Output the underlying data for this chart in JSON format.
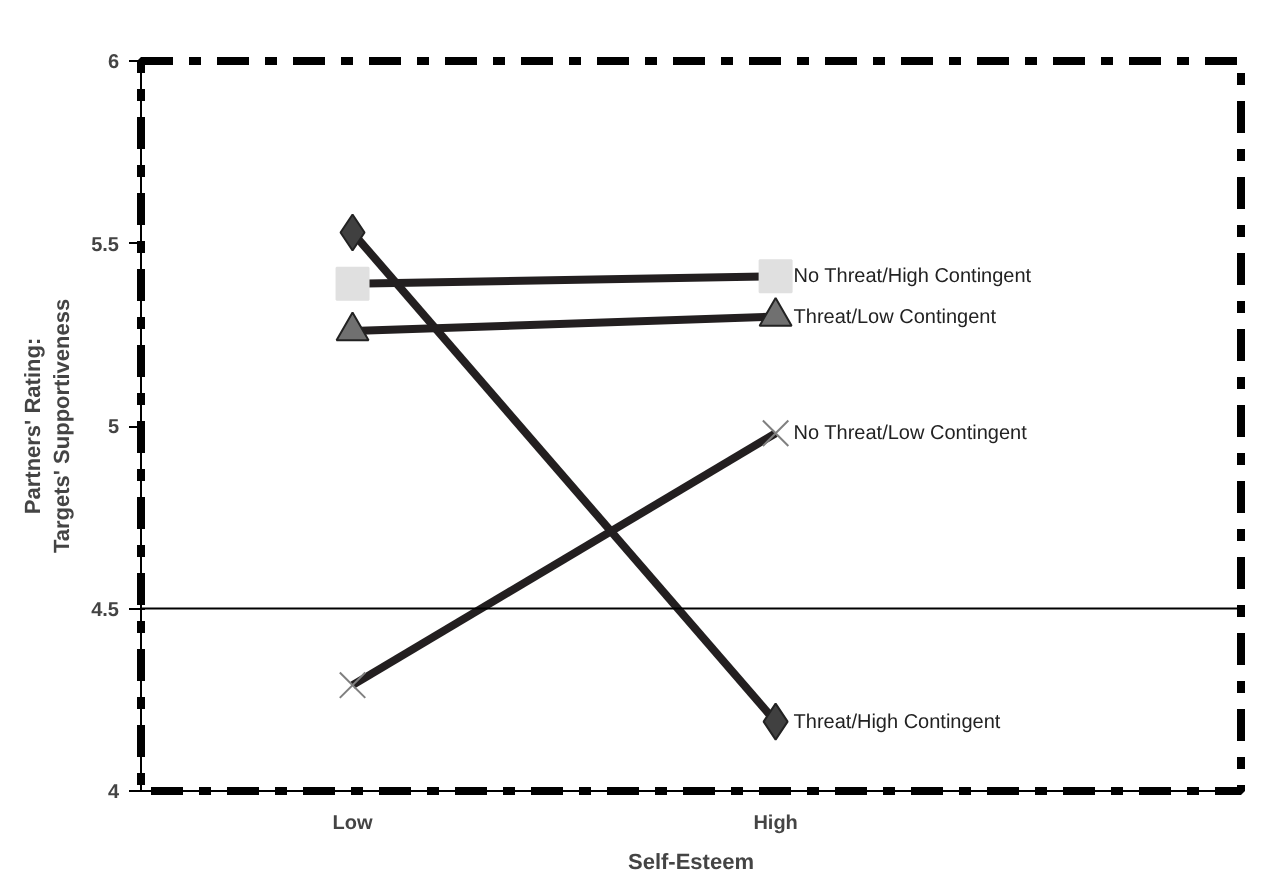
{
  "chart_data": {
    "type": "line",
    "xlabel": "Self-Esteem",
    "ylabel": "Partners' Rating:\nTargets' Supportiveness",
    "categories": [
      "Low",
      "High"
    ],
    "ylim": [
      4,
      6
    ],
    "yticks": [
      4,
      4.5,
      5,
      5.5,
      6
    ],
    "grid": false,
    "ref_lines": [
      {
        "axis": "y",
        "value": 4.5,
        "color": "#000000"
      }
    ],
    "series": [
      {
        "name": "Threat/High Contingent",
        "color": "#404040",
        "marker": "diamond",
        "values": [
          5.53,
          4.19
        ]
      },
      {
        "name": "No Threat/High Contingent",
        "color": "#e0e0e0",
        "marker": "square",
        "values": [
          5.39,
          5.41
        ]
      },
      {
        "name": "Threat/Low Contingent",
        "color": "#707070",
        "marker": "triangle",
        "values": [
          5.26,
          5.3
        ]
      },
      {
        "name": "No Threat/Low Contingent",
        "color": "#808080",
        "marker": "cross",
        "values": [
          4.29,
          4.98
        ]
      }
    ]
  }
}
